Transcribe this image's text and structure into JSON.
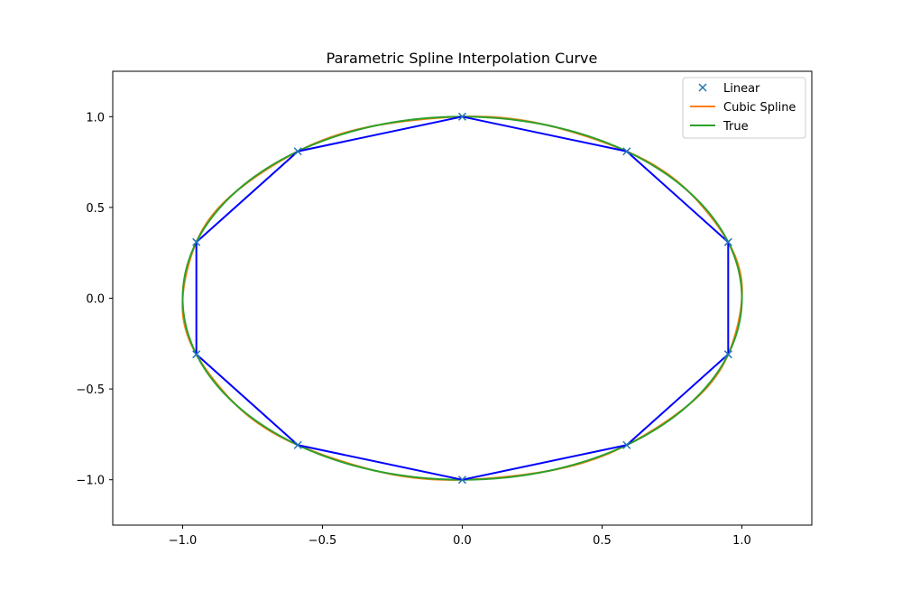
{
  "chart_data": {
    "type": "line",
    "title": "Parametric Spline Interpolation Curve",
    "xlabel": "",
    "ylabel": "",
    "xlim": [
      -1.25,
      1.25
    ],
    "ylim": [
      -1.25,
      1.25
    ],
    "x_ticks": [
      -1.0,
      -0.5,
      0.0,
      0.5,
      1.0
    ],
    "y_ticks": [
      -1.0,
      -0.5,
      0.0,
      0.5,
      1.0
    ],
    "x_tick_labels": [
      "−1.0",
      "−0.5",
      "0.0",
      "0.5",
      "1.0"
    ],
    "y_tick_labels": [
      "−1.0",
      "−0.5",
      "0.0",
      "0.5",
      "1.0"
    ],
    "grid": false,
    "legend_position": "top-right",
    "series": [
      {
        "name": "Linear",
        "style": "markers",
        "marker": "x",
        "color": "#1f77b4",
        "connecting_line_color": "#0000ff",
        "x": [
          0.0,
          0.588,
          0.951,
          0.951,
          0.588,
          0.0,
          -0.588,
          -0.951,
          -0.951,
          -0.588,
          0.0
        ],
        "y": [
          1.0,
          0.809,
          0.309,
          -0.309,
          -0.809,
          -1.0,
          -0.809,
          -0.309,
          0.309,
          0.809,
          1.0
        ]
      },
      {
        "name": "Cubic Spline",
        "style": "line",
        "color": "#ff7f0e",
        "shape": "unit circle x=sin(t), y=cos(t), t in [0, 2π]"
      },
      {
        "name": "True",
        "style": "line",
        "color": "#2ca02c",
        "shape": "unit circle x=sin(t), y=cos(t), t in [0, 2π]"
      }
    ]
  }
}
